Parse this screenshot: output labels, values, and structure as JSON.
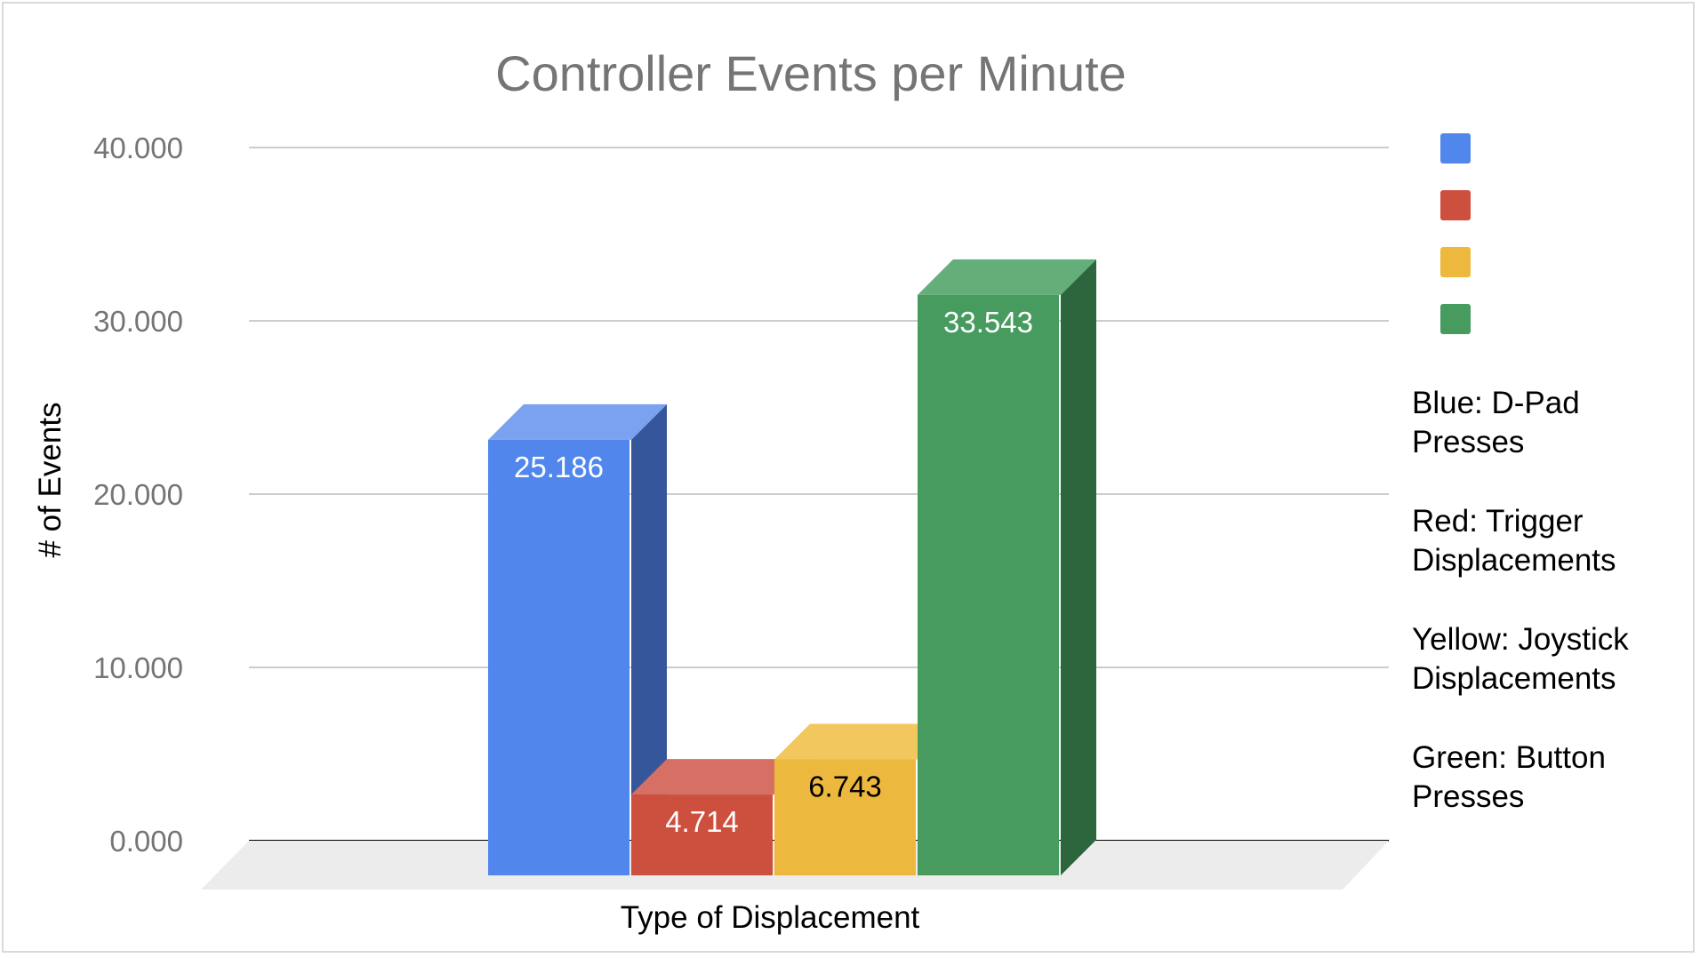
{
  "chart_data": {
    "type": "bar",
    "title": "Controller Events per Minute",
    "xlabel": "Type of Displacement",
    "ylabel": "# of Events",
    "ylim": [
      0,
      40000
    ],
    "y_ticks": [
      {
        "value": 0,
        "label": "0.000"
      },
      {
        "value": 10000,
        "label": "10.000"
      },
      {
        "value": 20000,
        "label": "20.000"
      },
      {
        "value": 30000,
        "label": "30.000"
      },
      {
        "value": 40000,
        "label": "40.000"
      }
    ],
    "grid": true,
    "style": "3d",
    "series": [
      {
        "value": 25186,
        "label": "25.186",
        "color": "#5187EC",
        "top_color": "#7BA2F0",
        "side_color": "#35569A",
        "label_color": "#ffffff"
      },
      {
        "value": 4714,
        "label": "4.714",
        "color": "#CD4F3E",
        "top_color": "#D77064",
        "side_color": "#8A3327",
        "label_color": "#ffffff"
      },
      {
        "value": 6743,
        "label": "6.743",
        "color": "#EDB83E",
        "top_color": "#F1C75E",
        "side_color": "#A7802A",
        "label_color": "#000000"
      },
      {
        "value": 33543,
        "label": "33.543",
        "color": "#479B5F",
        "top_color": "#64AE7A",
        "side_color": "#2D663D",
        "label_color": "#ffffff"
      }
    ],
    "legend": {
      "placement": "right",
      "swatches": [
        "#5187EC",
        "#CD4F3E",
        "#EDB83E",
        "#479B5F"
      ]
    },
    "notes": [
      [
        "Blue: D-Pad",
        "Presses"
      ],
      [
        "Red: Trigger",
        "Displacements"
      ],
      [
        "Yellow: Joystick",
        "Displacements"
      ],
      [
        "Green: Button",
        "Presses"
      ]
    ]
  }
}
